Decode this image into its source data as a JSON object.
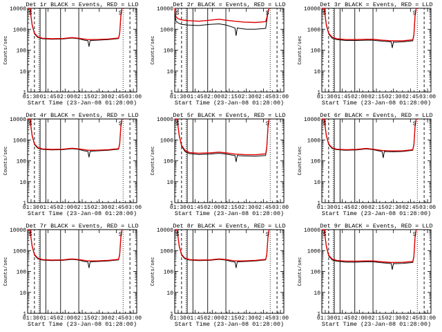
{
  "colors": {
    "events": "#000000",
    "lld": "#e00000",
    "frame": "#000000"
  },
  "chart_data": {
    "type": "line",
    "layout": "3x3 grid of panels",
    "xlabel": "Start Time (23-Jan-08 01:28:00)",
    "ylabel": "Counts/sec",
    "yscale": "log",
    "ylim": [
      1,
      10000
    ],
    "yticks": [
      "1",
      "10",
      "100",
      "1000",
      "10000"
    ],
    "xlim_minutes": [
      -1,
      95
    ],
    "xticks": [
      {
        "m": 2,
        "label": "01:30"
      },
      {
        "m": 17,
        "label": "01:45"
      },
      {
        "m": 32,
        "label": "02:00"
      },
      {
        "m": 47,
        "label": "02:15"
      },
      {
        "m": 62,
        "label": "02:30"
      },
      {
        "m": 77,
        "label": "02:45"
      },
      {
        "m": 92,
        "label": "03:00"
      }
    ],
    "legend": "Events (black), LLD (red)",
    "panels": [
      {
        "title": "Det 1r BLACK = Events, RED = LLD",
        "event_markers_minutes": [
          5,
          9,
          10,
          15,
          28,
          44,
          83,
          89
        ],
        "series": [
          {
            "name": "Events",
            "color": "black",
            "x": [
              -1,
              1,
              3,
              5,
              8,
              12,
              20,
              30,
              38,
              44,
              49,
              52,
              53,
              54,
              55,
              60,
              70,
              79,
              80,
              81,
              82
            ],
            "y": [
              10000,
              10000,
              1500,
              600,
              400,
              350,
              330,
              340,
              380,
              350,
              300,
              285,
              150,
              285,
              290,
              300,
              320,
              360,
              600,
              4000,
              10000
            ]
          },
          {
            "name": "LLD",
            "color": "red",
            "x": [
              -1,
              1,
              3,
              5,
              8,
              12,
              20,
              30,
              38,
              44,
              52,
              60,
              70,
              79,
              80,
              81,
              82
            ],
            "y": [
              10000,
              10000,
              1600,
              650,
              430,
              370,
              350,
              360,
              400,
              370,
              320,
              320,
              340,
              380,
              650,
              4500,
              10000
            ]
          }
        ]
      },
      {
        "title": "Det 2r BLACK = Events, RED = LLD",
        "event_markers_minutes": [
          5,
          9,
          10,
          15,
          28,
          44,
          83,
          89
        ],
        "series": [
          {
            "name": "Events",
            "color": "black",
            "x": [
              -1,
              0,
              2,
              5,
              10,
              20,
              30,
              38,
              44,
              49,
              52,
              53,
              54,
              56,
              62,
              70,
              79,
              80,
              81,
              82
            ],
            "y": [
              10000,
              2500,
              2000,
              1700,
              1600,
              1500,
              1700,
              1800,
              1600,
              1300,
              1150,
              500,
              1150,
              1100,
              1000,
              1000,
              1100,
              2500,
              6000,
              10000
            ]
          },
          {
            "name": "LLD",
            "color": "red",
            "x": [
              -1,
              0,
              2,
              5,
              10,
              20,
              30,
              38,
              44,
              52,
              60,
              70,
              79,
              80,
              81,
              82
            ],
            "y": [
              10000,
              4000,
              3200,
              2800,
              2600,
              2400,
              2700,
              3000,
              2700,
              2400,
              2200,
              2100,
              2300,
              3500,
              7000,
              10000
            ]
          }
        ]
      },
      {
        "title": "Det 3r BLACK = Events, RED = LLD",
        "event_markers_minutes": [
          5,
          9,
          10,
          15,
          28,
          44,
          83,
          89
        ],
        "series": [
          {
            "name": "Events",
            "color": "black",
            "x": [
              -1,
              1,
              3,
              5,
              8,
              12,
              20,
              30,
              38,
              44,
              52,
              60,
              61,
              62,
              63,
              70,
              79,
              80,
              81,
              82
            ],
            "y": [
              10000,
              10000,
              1500,
              600,
              380,
              320,
              290,
              290,
              300,
              300,
              270,
              250,
              130,
              250,
              240,
              250,
              280,
              500,
              4000,
              10000
            ]
          },
          {
            "name": "LLD",
            "color": "red",
            "x": [
              -1,
              1,
              3,
              5,
              8,
              12,
              20,
              30,
              38,
              44,
              52,
              60,
              70,
              79,
              80,
              81,
              82
            ],
            "y": [
              10000,
              10000,
              1600,
              650,
              420,
              350,
              320,
              320,
              330,
              330,
              300,
              280,
              280,
              310,
              550,
              4500,
              10000
            ]
          }
        ]
      },
      {
        "title": "Det 4r BLACK = Events, RED = LLD",
        "event_markers_minutes": [
          5,
          9,
          10,
          15,
          28,
          44,
          83,
          89
        ],
        "series": [
          {
            "name": "Events",
            "color": "black",
            "x": [
              -1,
              1,
              3,
              5,
              8,
              12,
              20,
              30,
              38,
              44,
              49,
              52,
              53,
              54,
              55,
              60,
              70,
              79,
              80,
              81,
              82
            ],
            "y": [
              10000,
              10000,
              1500,
              600,
              400,
              350,
              330,
              340,
              380,
              350,
              300,
              285,
              150,
              285,
              290,
              300,
              320,
              360,
              600,
              4000,
              10000
            ]
          },
          {
            "name": "LLD",
            "color": "red",
            "x": [
              -1,
              1,
              3,
              5,
              8,
              12,
              20,
              30,
              38,
              44,
              52,
              60,
              70,
              79,
              80,
              81,
              82
            ],
            "y": [
              10000,
              10000,
              1600,
              650,
              430,
              370,
              350,
              360,
              400,
              370,
              320,
              320,
              340,
              380,
              650,
              4500,
              10000
            ]
          }
        ]
      },
      {
        "title": "Det 5r BLACK = Events, RED = LLD",
        "event_markers_minutes": [
          5,
          9,
          10,
          15,
          28,
          44,
          83,
          89
        ],
        "series": [
          {
            "name": "Events",
            "color": "black",
            "x": [
              -1,
              1,
              3,
              5,
              8,
              12,
              20,
              30,
              38,
              44,
              49,
              52,
              53,
              54,
              56,
              62,
              70,
              79,
              80,
              81,
              82
            ],
            "y": [
              10000,
              10000,
              1500,
              500,
              280,
              220,
              200,
              210,
              230,
              210,
              190,
              180,
              90,
              180,
              175,
              170,
              165,
              180,
              400,
              3500,
              10000
            ]
          },
          {
            "name": "LLD",
            "color": "red",
            "x": [
              -1,
              1,
              3,
              5,
              8,
              12,
              20,
              30,
              38,
              44,
              52,
              60,
              70,
              79,
              80,
              81,
              82
            ],
            "y": [
              10000,
              10000,
              1600,
              550,
              320,
              250,
              230,
              240,
              260,
              240,
              210,
              200,
              195,
              215,
              450,
              4000,
              10000
            ]
          }
        ]
      },
      {
        "title": "Det 6r BLACK = Events, RED = LLD",
        "event_markers_minutes": [
          5,
          9,
          10,
          15,
          28,
          44,
          83,
          89
        ],
        "series": [
          {
            "name": "Events",
            "color": "black",
            "x": [
              -1,
              1,
              3,
              5,
              8,
              12,
              20,
              30,
              38,
              44,
              49,
              52,
              53,
              54,
              56,
              62,
              70,
              79,
              80,
              81,
              82
            ],
            "y": [
              10000,
              10000,
              1500,
              600,
              390,
              340,
              320,
              330,
              370,
              340,
              300,
              280,
              140,
              280,
              275,
              270,
              280,
              320,
              550,
              4000,
              10000
            ]
          },
          {
            "name": "LLD",
            "color": "red",
            "x": [
              -1,
              1,
              3,
              5,
              8,
              12,
              20,
              30,
              38,
              44,
              52,
              60,
              70,
              79,
              80,
              81,
              82
            ],
            "y": [
              10000,
              10000,
              1600,
              650,
              420,
              360,
              340,
              350,
              390,
              360,
              310,
              300,
              300,
              340,
              600,
              4500,
              10000
            ]
          }
        ]
      },
      {
        "title": "Det 7r BLACK = Events, RED = LLD",
        "event_markers_minutes": [
          5,
          9,
          10,
          15,
          28,
          44,
          83,
          89
        ],
        "series": [
          {
            "name": "Events",
            "color": "black",
            "x": [
              -1,
              1,
              3,
              5,
              8,
              12,
              20,
              30,
              38,
              44,
              49,
              52,
              53,
              54,
              55,
              60,
              70,
              79,
              80,
              81,
              82
            ],
            "y": [
              10000,
              10000,
              1500,
              600,
              400,
              350,
              330,
              340,
              380,
              350,
              300,
              285,
              150,
              285,
              290,
              300,
              320,
              360,
              600,
              4000,
              10000
            ]
          },
          {
            "name": "LLD",
            "color": "red",
            "x": [
              -1,
              1,
              3,
              5,
              8,
              12,
              20,
              30,
              38,
              44,
              52,
              60,
              70,
              79,
              80,
              81,
              82
            ],
            "y": [
              10000,
              10000,
              1600,
              650,
              430,
              370,
              350,
              360,
              400,
              370,
              320,
              320,
              340,
              380,
              650,
              4500,
              10000
            ]
          }
        ]
      },
      {
        "title": "Det 8r BLACK = Events, RED = LLD",
        "event_markers_minutes": [
          5,
          9,
          10,
          15,
          28,
          44,
          83,
          89
        ],
        "series": [
          {
            "name": "Events",
            "color": "black",
            "x": [
              -1,
              1,
              3,
              5,
              8,
              12,
              20,
              30,
              38,
              44,
              49,
              52,
              53,
              54,
              55,
              60,
              70,
              79,
              80,
              81,
              82
            ],
            "y": [
              10000,
              10000,
              1500,
              600,
              400,
              350,
              330,
              340,
              380,
              350,
              300,
              285,
              150,
              285,
              290,
              300,
              320,
              360,
              600,
              4000,
              10000
            ]
          },
          {
            "name": "LLD",
            "color": "red",
            "x": [
              -1,
              1,
              3,
              5,
              8,
              12,
              20,
              30,
              38,
              44,
              52,
              60,
              70,
              79,
              80,
              81,
              82
            ],
            "y": [
              10000,
              10000,
              1600,
              650,
              430,
              370,
              350,
              360,
              400,
              370,
              320,
              320,
              340,
              380,
              650,
              4500,
              10000
            ]
          }
        ]
      },
      {
        "title": "Det 9r BLACK = Events, RED = LLD",
        "event_markers_minutes": [
          5,
          9,
          10,
          15,
          28,
          44,
          83,
          89
        ],
        "series": [
          {
            "name": "Events",
            "color": "black",
            "x": [
              -1,
              1,
              3,
              5,
              8,
              12,
              20,
              30,
              38,
              44,
              52,
              60,
              61,
              62,
              63,
              70,
              79,
              80,
              81,
              82
            ],
            "y": [
              10000,
              10000,
              1500,
              550,
              360,
              310,
              280,
              280,
              290,
              290,
              260,
              240,
              125,
              240,
              235,
              245,
              270,
              480,
              4000,
              10000
            ]
          },
          {
            "name": "LLD",
            "color": "red",
            "x": [
              -1,
              1,
              3,
              5,
              8,
              12,
              20,
              30,
              38,
              44,
              52,
              60,
              70,
              79,
              80,
              81,
              82
            ],
            "y": [
              10000,
              10000,
              1600,
              600,
              400,
              340,
              310,
              310,
              320,
              320,
              290,
              270,
              275,
              300,
              530,
              4500,
              10000
            ]
          }
        ]
      }
    ]
  }
}
